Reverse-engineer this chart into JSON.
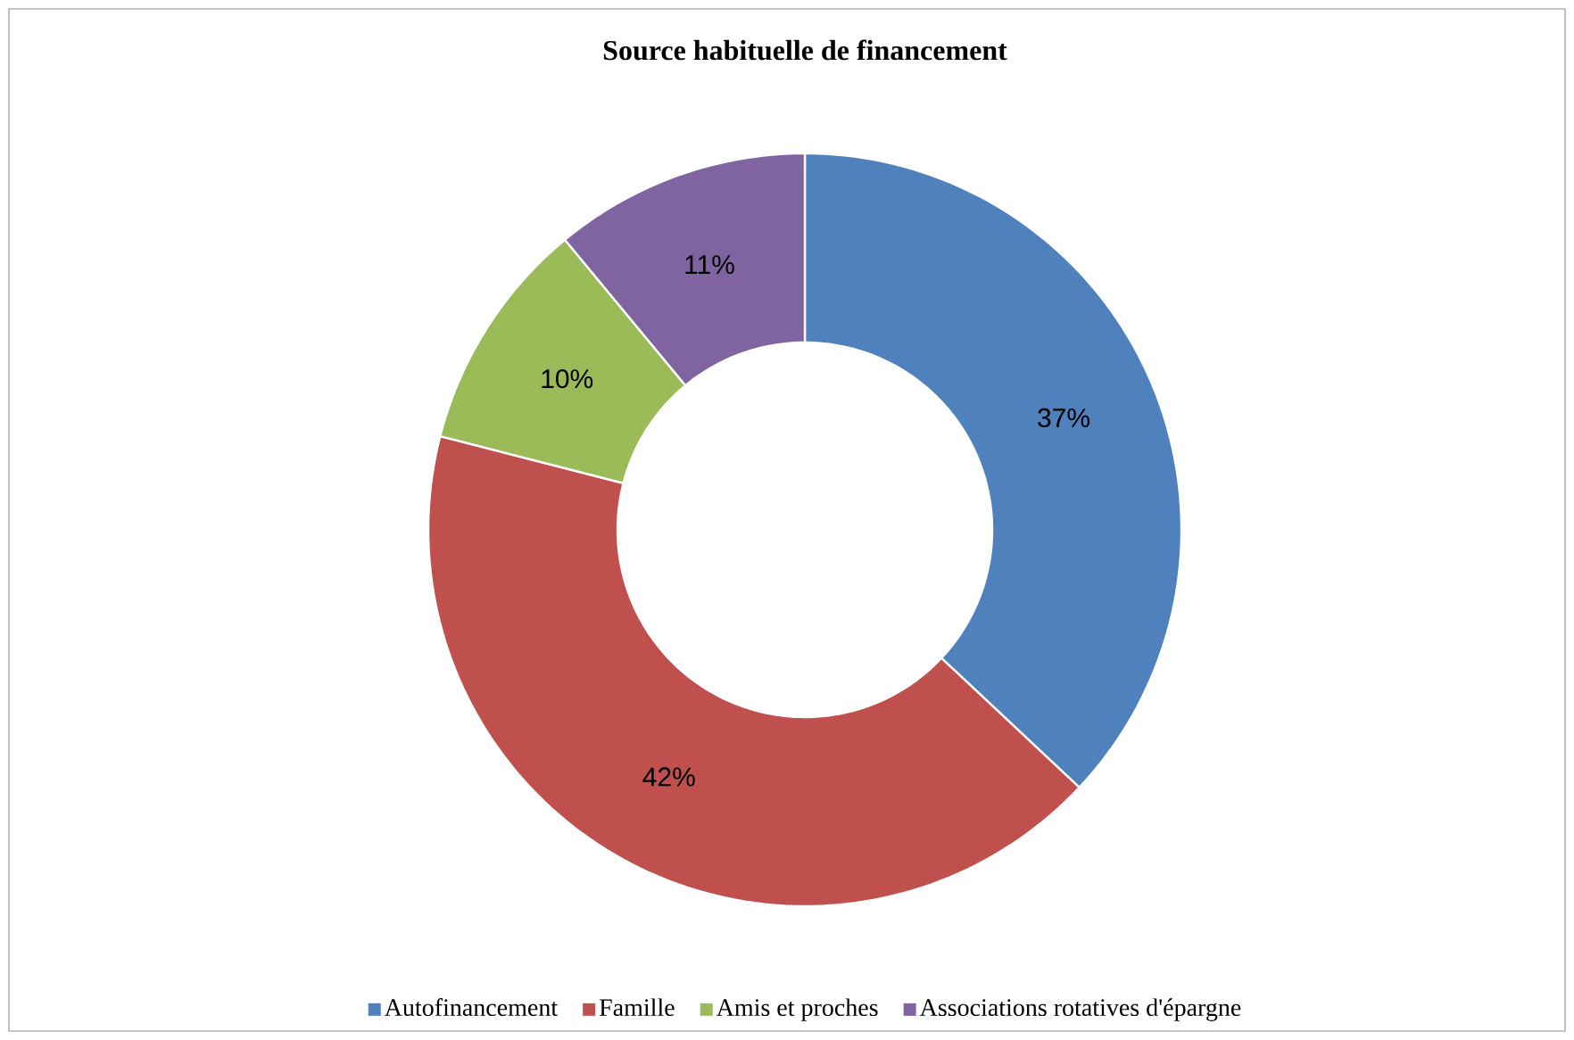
{
  "chart_data": {
    "type": "donut",
    "title": "Source habituelle de financement",
    "categories": [
      "Autofinancement",
      "Famille",
      "Amis et proches",
      "Associations rotatives d'épargne"
    ],
    "values": [
      37,
      42,
      10,
      11
    ],
    "colors": [
      "#4f81bd",
      "#c0504d",
      "#9bbb59",
      "#8064a2"
    ],
    "value_labels": [
      "37%",
      "42%",
      "10%",
      "11%"
    ],
    "legend": "bottom"
  }
}
